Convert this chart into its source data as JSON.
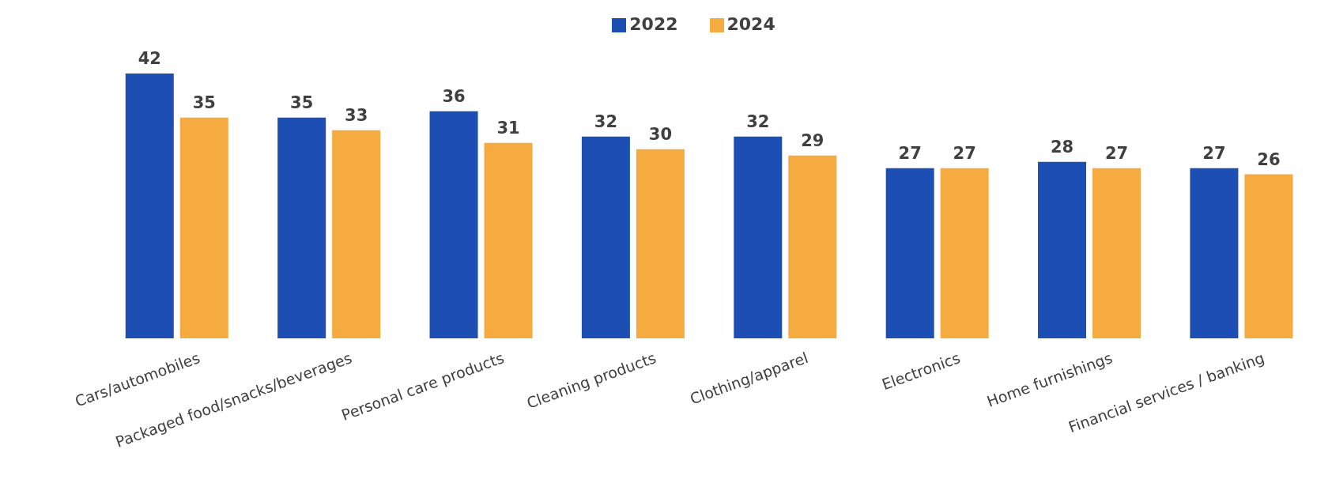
{
  "chart_data": {
    "type": "bar",
    "categories": [
      "Cars/automobiles",
      "Packaged food/snacks/beverages",
      "Personal care products",
      "Cleaning products",
      "Clothing/apparel",
      "Electronics",
      "Home furnishings",
      "Financial services / banking"
    ],
    "series": [
      {
        "name": "2022",
        "color": "#1c4eb3",
        "values": [
          42,
          35,
          36,
          32,
          32,
          27,
          28,
          27
        ]
      },
      {
        "name": "2024",
        "color": "#f5ab3f",
        "values": [
          35,
          33,
          31,
          30,
          29,
          27,
          27,
          26
        ]
      }
    ],
    "data_labels": true,
    "legend": "top",
    "grid": false
  }
}
